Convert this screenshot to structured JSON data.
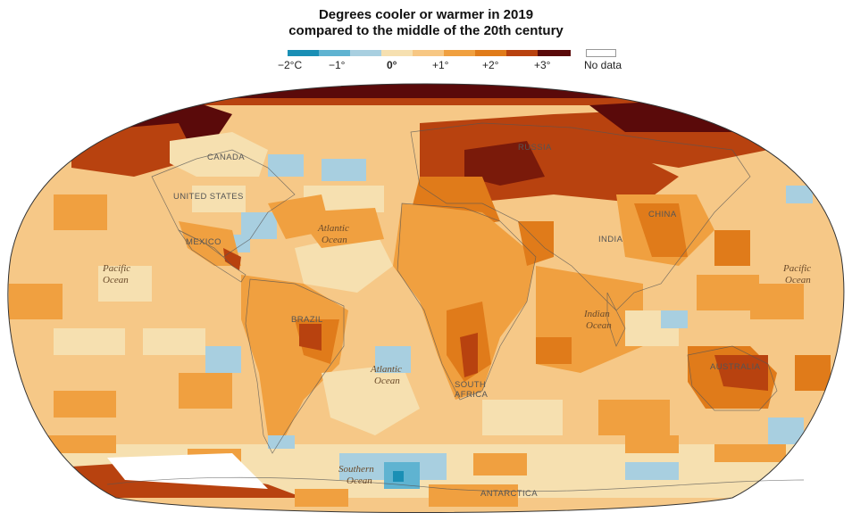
{
  "title": {
    "line1": "Degrees cooler or warmer in 2019",
    "line2": "compared to the middle of the 20th century"
  },
  "legend": {
    "items": [
      {
        "label": "−2°C",
        "bold": false
      },
      {
        "label": "−1°",
        "bold": false
      },
      {
        "label": "0°",
        "bold": true
      },
      {
        "label": "+1°",
        "bold": false
      },
      {
        "label": "+2°",
        "bold": false
      },
      {
        "label": "+3°",
        "bold": false
      }
    ],
    "colors": [
      "#1a8fb5",
      "#5fb3d1",
      "#a8cfe0",
      "#f6e0b0",
      "#f7c783",
      "#f0a040",
      "#e07b1a",
      "#b8420f",
      "#5a0a0a"
    ],
    "no_data": "No data"
  },
  "map": {
    "countries": [
      {
        "name": "CANADA"
      },
      {
        "name": "UNITED STATES"
      },
      {
        "name": "MEXICO"
      },
      {
        "name": "BRAZIL"
      },
      {
        "name": "RUSSIA"
      },
      {
        "name": "CHINA"
      },
      {
        "name": "INDIA"
      },
      {
        "name": "AUSTRALIA"
      },
      {
        "name": "SOUTH AFRICA"
      },
      {
        "name": "ANTARCTICA"
      }
    ],
    "oceans": [
      {
        "name": "Pacific Ocean",
        "line1": "Pacific",
        "line2": "Ocean"
      },
      {
        "name": "Atlantic Ocean (north)",
        "line1": "Atlantic",
        "line2": "Ocean"
      },
      {
        "name": "Atlantic Ocean (south)",
        "line1": "Atlantic",
        "line2": "Ocean"
      },
      {
        "name": "Indian Ocean",
        "line1": "Indian",
        "line2": "Ocean"
      },
      {
        "name": "Pacific Ocean (east)",
        "line1": "Pacific",
        "line2": "Ocean"
      },
      {
        "name": "Southern Ocean",
        "line1": "Southern",
        "line2": "Ocean"
      }
    ]
  }
}
